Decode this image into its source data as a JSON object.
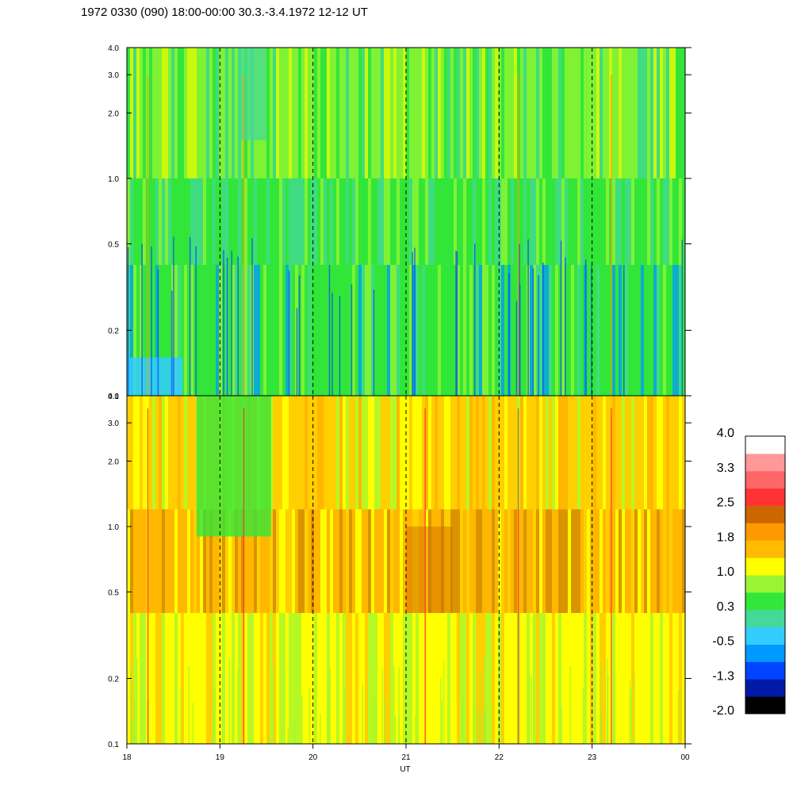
{
  "chart_data": {
    "type": "heatmap",
    "title": "1972 0330 (090) 18:00-00:00 30.3.-3.4.1972  12-12 UT",
    "xlabel": "UT",
    "x_tick_labels": [
      "18",
      "19",
      "20",
      "21",
      "22",
      "23",
      "00"
    ],
    "x_range_hours": [
      18,
      24
    ],
    "dashed_vertical_lines_at_hours": [
      19,
      20,
      21,
      22,
      23
    ],
    "y_scale": "log",
    "y_range": [
      0.1,
      4.0
    ],
    "y_tick_labels": [
      "0.1",
      "0.2",
      "0.5",
      "1.0",
      "2.0",
      "3.0",
      "4.0"
    ],
    "panels": [
      {
        "name": "upper",
        "dominant_level_range": [
          0.3,
          1.0
        ],
        "dominant_colors": [
          "green",
          "yellow-green",
          "cyan-green"
        ],
        "features": [
          {
            "kind": "bluish band",
            "x_hours": [
              19.2,
              19.5
            ],
            "y": [
              1.5,
              4.0
            ]
          },
          {
            "kind": "cyan region",
            "x_hours": [
              18.0,
              18.6
            ],
            "y": [
              0.1,
              0.15
            ]
          }
        ]
      },
      {
        "name": "lower",
        "dominant_level_range": [
          1.0,
          2.5
        ],
        "dominant_colors": [
          "yellow",
          "orange"
        ],
        "features": [
          {
            "kind": "green patch",
            "x_hours": [
              18.75,
              19.55
            ],
            "y": [
              0.9,
              4.0
            ]
          },
          {
            "kind": "darker orange",
            "x_hours": [
              21.0,
              21.5
            ],
            "y": [
              0.4,
              1.0
            ]
          }
        ]
      }
    ],
    "colorbar": {
      "tick_labels": [
        "4.0",
        "3.3",
        "2.5",
        "1.8",
        "1.0",
        "0.3",
        "-0.5",
        "-1.3",
        "-2.0"
      ],
      "colors": [
        "#000000",
        "#001aa8",
        "#0044ff",
        "#0099ff",
        "#33ccff",
        "#44d89a",
        "#33e63a",
        "#99f533",
        "#ffff00",
        "#ffbb00",
        "#ff9900",
        "#cc6600",
        "#ff3333",
        "#ff6666",
        "#ff9999",
        "#ffffff"
      ]
    }
  }
}
